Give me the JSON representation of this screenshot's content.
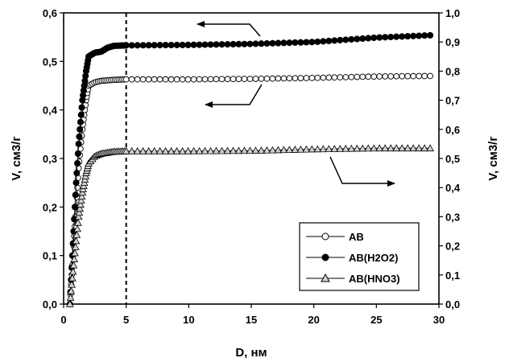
{
  "chart_data": {
    "type": "scatter",
    "xlabel": "D, нм",
    "ylabel_left": "V, см3/г",
    "ylabel_right": "V, см3/г",
    "xlim": [
      0,
      30
    ],
    "ylim_left": [
      0,
      0.6
    ],
    "ylim_right": [
      0,
      1.0
    ],
    "x_ticks": [
      "0",
      "5",
      "10",
      "15",
      "20",
      "25",
      "30"
    ],
    "y_left_ticks": [
      "0,0",
      "0,1",
      "0,2",
      "0,3",
      "0,4",
      "0,5",
      "0,6"
    ],
    "y_right_ticks": [
      "0,0",
      "0,1",
      "0,2",
      "0,3",
      "0,4",
      "0,5",
      "0,6",
      "0,7",
      "0,8",
      "0,9",
      "1,0"
    ],
    "vertical_reference_line": {
      "x": 5,
      "style": "dashed"
    },
    "grid": false,
    "legend_position": "bottom-right",
    "series": [
      {
        "name": "АВ",
        "axis": "left",
        "marker": "circle-open",
        "points": [
          [
            0.5,
            0
          ],
          [
            0.8,
            0.12
          ],
          [
            1.0,
            0.2
          ],
          [
            1.2,
            0.28
          ],
          [
            1.5,
            0.36
          ],
          [
            1.8,
            0.42
          ],
          [
            2.0,
            0.45
          ],
          [
            2.5,
            0.457
          ],
          [
            3,
            0.46
          ],
          [
            4,
            0.462
          ],
          [
            5,
            0.463
          ],
          [
            10,
            0.463
          ],
          [
            15,
            0.464
          ],
          [
            20,
            0.466
          ],
          [
            25,
            0.469
          ],
          [
            29.5,
            0.47
          ]
        ]
      },
      {
        "name": "АВ(H2O2)",
        "axis": "left",
        "marker": "circle-filled",
        "points": [
          [
            0.5,
            0
          ],
          [
            0.8,
            0.15
          ],
          [
            1.0,
            0.25
          ],
          [
            1.2,
            0.33
          ],
          [
            1.5,
            0.42
          ],
          [
            1.8,
            0.48
          ],
          [
            2.0,
            0.51
          ],
          [
            2.5,
            0.518
          ],
          [
            3,
            0.52
          ],
          [
            3.5,
            0.528
          ],
          [
            4,
            0.532
          ],
          [
            5,
            0.533
          ],
          [
            10,
            0.534
          ],
          [
            15,
            0.536
          ],
          [
            20,
            0.54
          ],
          [
            25,
            0.549
          ],
          [
            29.5,
            0.554
          ]
        ]
      },
      {
        "name": "АВ(HNO3)",
        "axis": "left",
        "marker": "triangle-open",
        "points": [
          [
            0.5,
            0
          ],
          [
            0.8,
            0.08
          ],
          [
            1.0,
            0.13
          ],
          [
            1.2,
            0.18
          ],
          [
            1.5,
            0.23
          ],
          [
            1.8,
            0.27
          ],
          [
            2.0,
            0.29
          ],
          [
            2.5,
            0.305
          ],
          [
            3,
            0.31
          ],
          [
            4,
            0.314
          ],
          [
            5,
            0.315
          ],
          [
            10,
            0.315
          ],
          [
            15,
            0.316
          ],
          [
            20,
            0.319
          ],
          [
            25,
            0.321
          ],
          [
            29.5,
            0.321
          ]
        ]
      }
    ],
    "annotation_arrows": [
      {
        "target_axis": "left",
        "direction": "left"
      },
      {
        "target_axis": "left",
        "direction": "left"
      },
      {
        "target_axis": "right",
        "direction": "right"
      }
    ]
  }
}
